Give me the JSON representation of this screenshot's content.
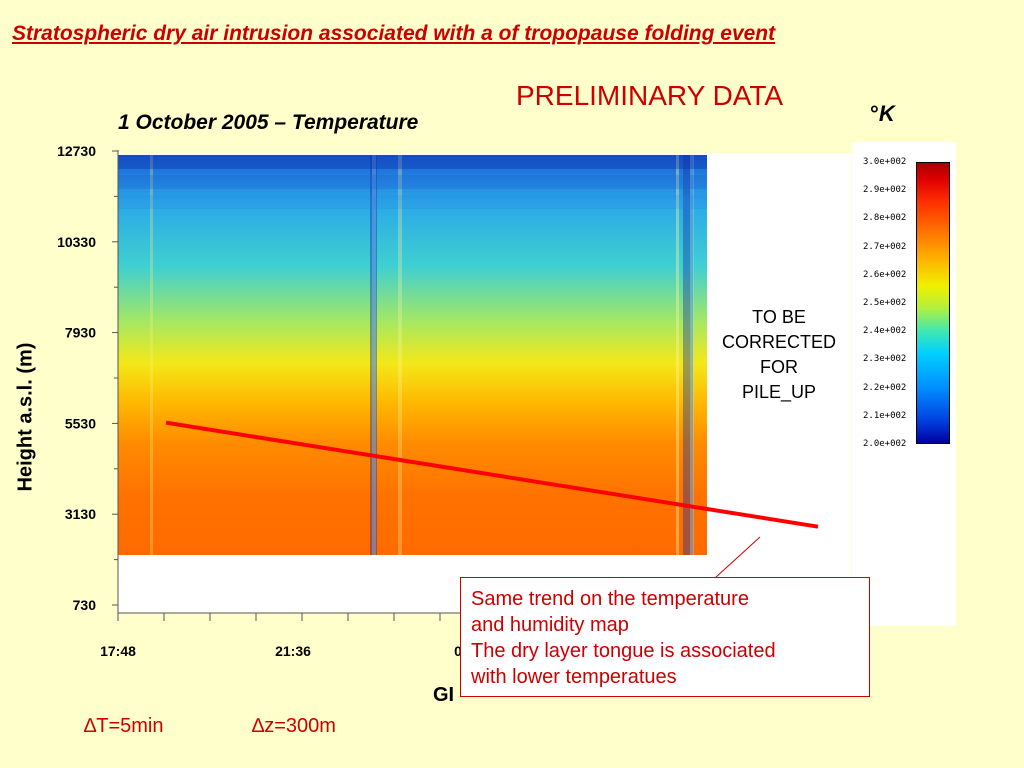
{
  "slide": {
    "title": "Stratospheric dry air intrusion associated with a of tropopause folding event",
    "preliminary": "PRELIMINARY DATA",
    "unit_degree": "°",
    "unit_letter": "K",
    "resolution_t": "∆T=5min",
    "resolution_z": "∆z=300m",
    "xlabel_partial": "GI"
  },
  "annotations": {
    "pileup": [
      "TO BE",
      "CORRECTED",
      "FOR",
      "PILE_UP"
    ],
    "callout": [
      "Same trend on the temperature",
      "and humidity map",
      "The dry layer tongue is associated",
      "with lower temperatues"
    ]
  },
  "colorbar": {
    "ticks": [
      "3.0e+002",
      "2.9e+002",
      "2.8e+002",
      "2.7e+002",
      "2.6e+002",
      "2.5e+002",
      "2.4e+002",
      "2.3e+002",
      "2.2e+002",
      "2.1e+002",
      "2.0e+002"
    ],
    "colors": [
      "#a80000",
      "#ff3000",
      "#ffb000",
      "#f0f000",
      "#40e8b0",
      "#00d0ff",
      "#0040e0",
      "#0000a0"
    ]
  },
  "chart_data": {
    "type": "heatmap",
    "title": "1 October 2005 – Temperature",
    "ylabel": "Height a.s.l. (m)",
    "yticks": [
      12730,
      10330,
      7930,
      5530,
      3130,
      730
    ],
    "ylim": [
      730,
      12730
    ],
    "xticks": [
      "17:48",
      "21:36",
      "0"
    ],
    "value_range_K": [
      200,
      300
    ],
    "data_coverage_height_m": [
      2130,
      12730
    ],
    "profile_K_by_height": [
      {
        "height": 12730,
        "value": 220
      },
      {
        "height": 10330,
        "value": 234
      },
      {
        "height": 7930,
        "value": 246
      },
      {
        "height": 5530,
        "value": 262
      },
      {
        "height": 3130,
        "value": 275
      },
      {
        "height": 2130,
        "value": 280
      }
    ],
    "trend_line": {
      "start_height": 5550,
      "end_height": 2800
    }
  }
}
